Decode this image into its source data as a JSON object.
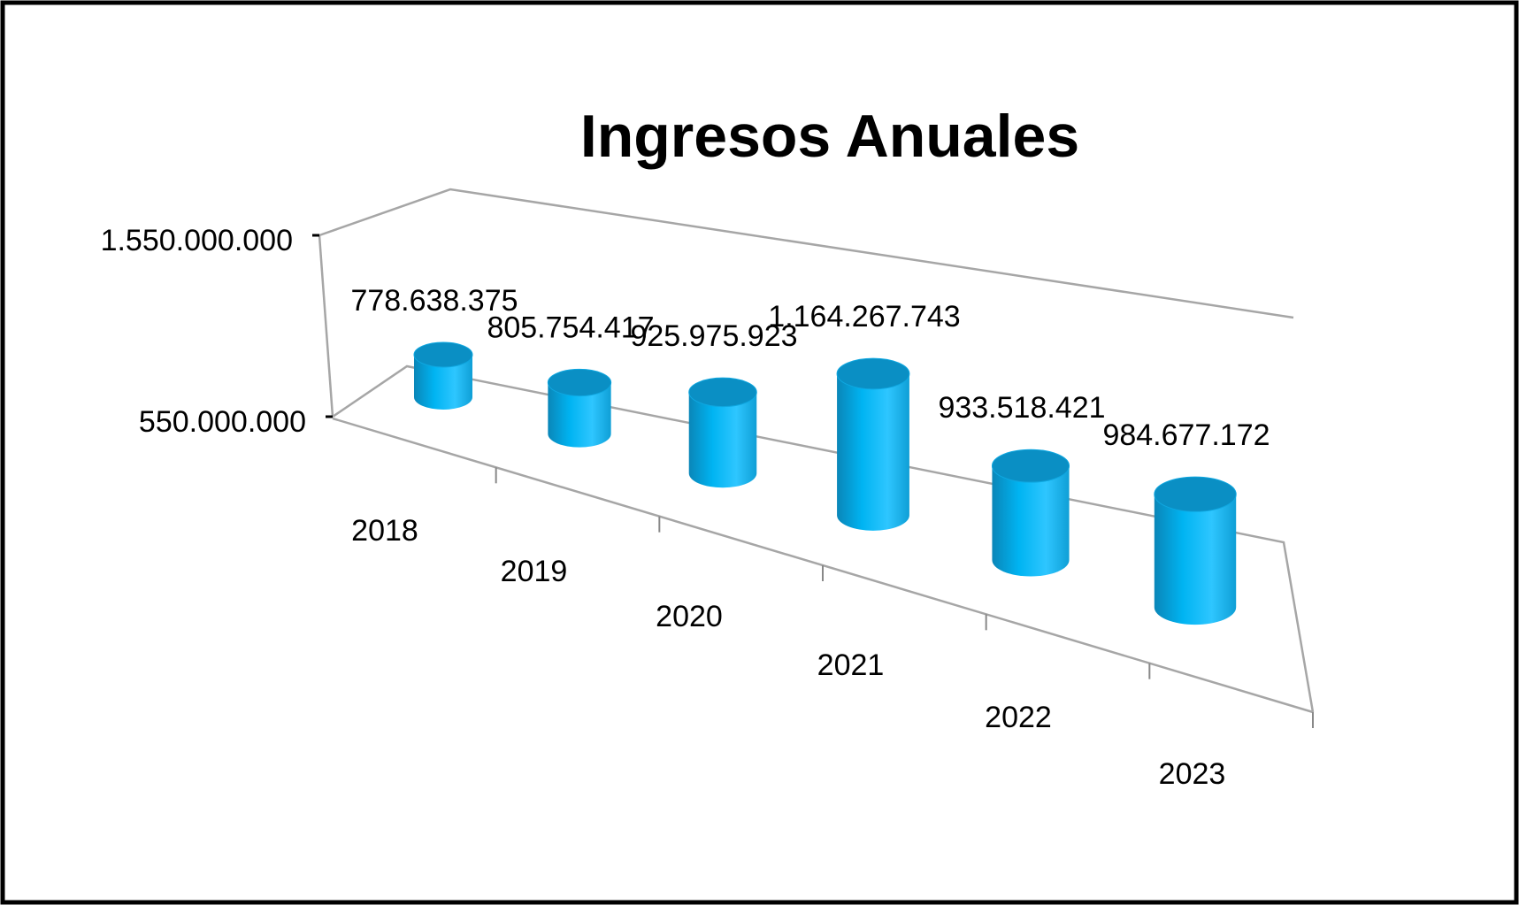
{
  "chart_data": {
    "type": "cylinder",
    "title": "Ingresos Anuales",
    "categories": [
      "2018",
      "2019",
      "2020",
      "2021",
      "2022",
      "2023"
    ],
    "values": [
      778638375,
      805754417,
      925975923,
      1164267743,
      933518421,
      984677172
    ],
    "value_labels": [
      "778.638.375",
      "805.754.417",
      "925.975.923",
      "1.164.267.743",
      "933.518.421",
      "984.677.172"
    ],
    "color": "#00b0f0",
    "ylim": [
      550000000,
      1550000000
    ],
    "yticks": [
      {
        "value": 550000000,
        "label": "550.000.000"
      },
      {
        "value": 1550000000,
        "label": "1.550.000.000"
      }
    ]
  }
}
